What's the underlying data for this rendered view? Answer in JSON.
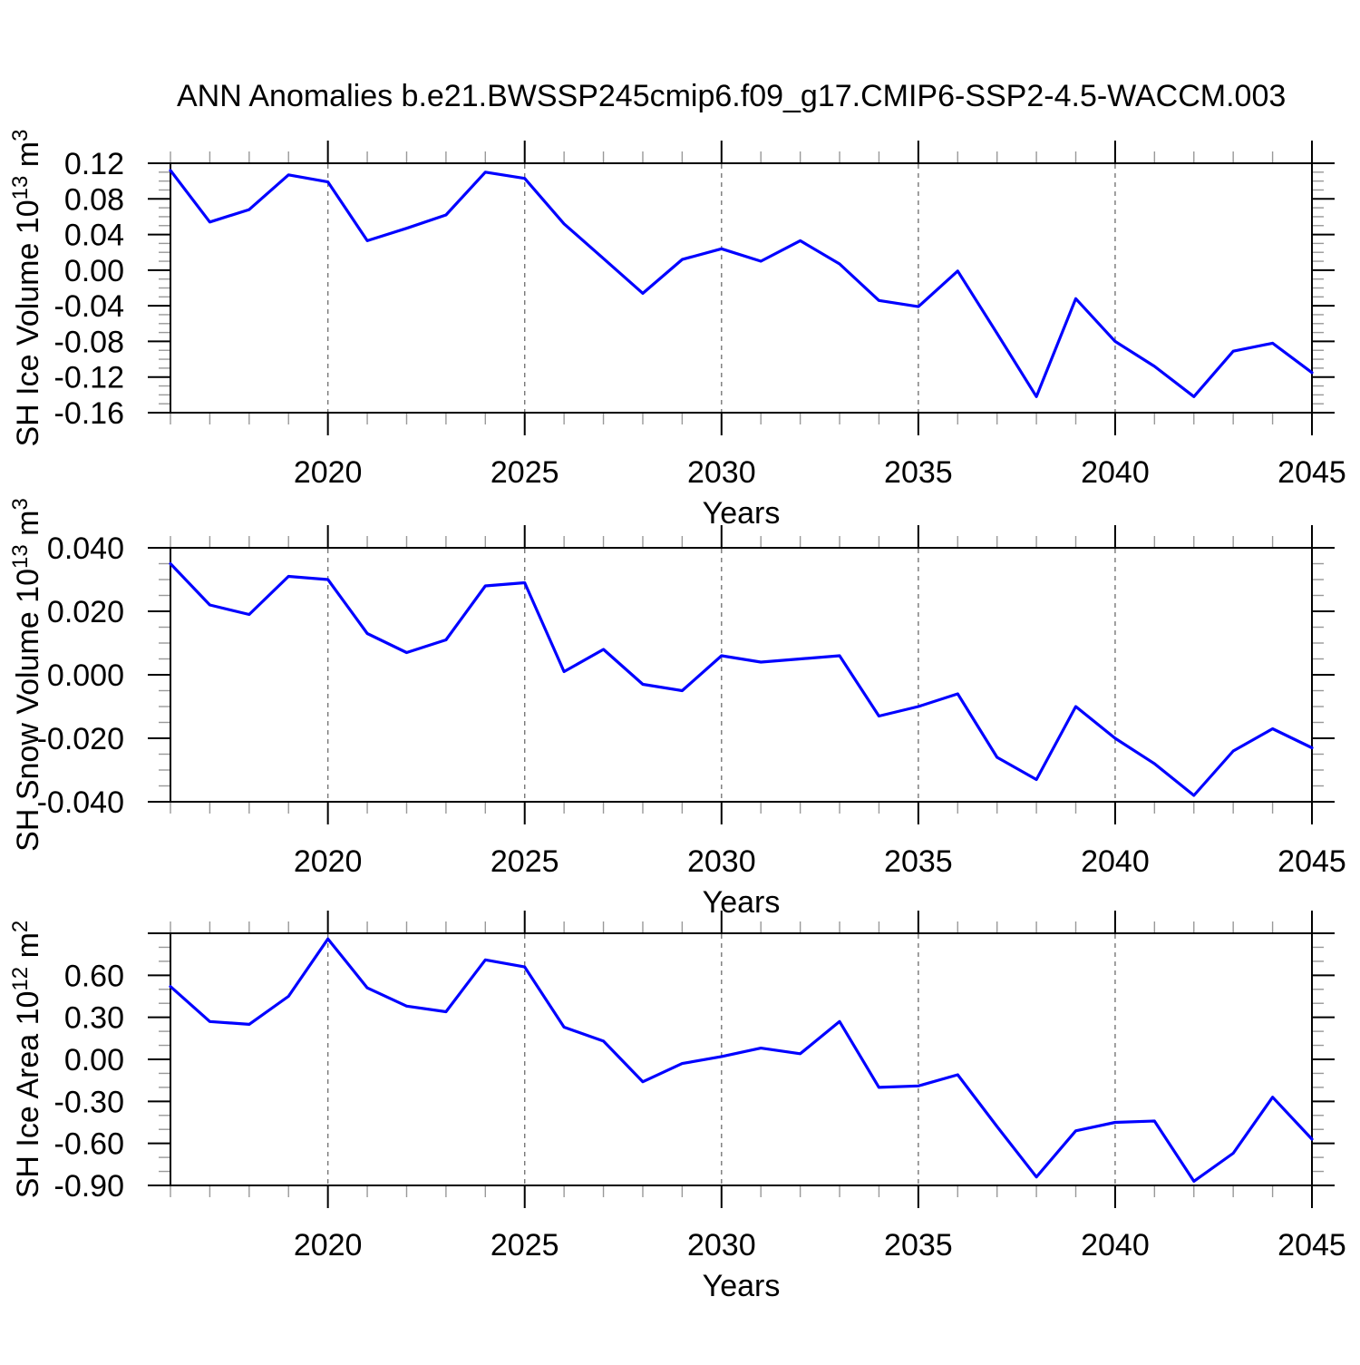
{
  "title": "ANN Anomalies b.e21.BWSSP245cmip6.f09_g17.CMIP6-SSP2-4.5-WACCM.003",
  "colors": {
    "line": "#0000ff",
    "frame": "#000000",
    "major_tick": "#000000",
    "minor_tick": "#999999",
    "dashed_line": "#777777",
    "text": "#000000",
    "background": "#ffffff"
  },
  "x_axis": {
    "label": "Years",
    "start": 2016,
    "end": 2045,
    "major_tick_years": [
      2020,
      2025,
      2030,
      2035,
      2040,
      2045
    ],
    "major_tick_labels": [
      "2020",
      "2025",
      "2030",
      "2035",
      "2040",
      "2045"
    ],
    "minor_step": 1,
    "dashed_gridline_years": [
      2020,
      2025,
      2030,
      2035,
      2040
    ]
  },
  "chart_data": [
    {
      "type": "line",
      "name": "sh-ice-volume",
      "title": "",
      "xlabel": "Years",
      "ylabel": "SH Ice Volume 10^13 m^3",
      "ylabel_parts": [
        {
          "t": "SH Ice Volume 10"
        },
        {
          "t": "13",
          "sup": true
        },
        {
          "t": " m"
        },
        {
          "t": "3",
          "sup": true
        }
      ],
      "ylim": [
        -0.16,
        0.12
      ],
      "ytick_major_values": [
        0.12,
        0.08,
        0.04,
        0.0,
        -0.04,
        -0.08,
        -0.12,
        -0.16
      ],
      "ytick_major_labels": [
        "0.12",
        "0.08",
        "0.04",
        "0.00",
        "-0.04",
        "-0.08",
        "-0.12",
        "-0.16"
      ],
      "ytick_minor_step": 0.01,
      "x": [
        2016,
        2017,
        2018,
        2019,
        2020,
        2021,
        2022,
        2023,
        2024,
        2025,
        2026,
        2027,
        2028,
        2029,
        2030,
        2031,
        2032,
        2033,
        2034,
        2035,
        2036,
        2037,
        2038,
        2039,
        2040,
        2041,
        2042,
        2043,
        2044,
        2045
      ],
      "values": [
        0.112,
        0.054,
        0.068,
        0.107,
        0.099,
        0.033,
        0.047,
        0.062,
        0.11,
        0.103,
        0.052,
        0.013,
        -0.026,
        0.012,
        0.024,
        0.01,
        0.033,
        0.007,
        -0.034,
        -0.041,
        -0.001,
        -0.071,
        -0.142,
        -0.032,
        -0.08,
        -0.108,
        -0.142,
        -0.091,
        -0.082,
        -0.115
      ]
    },
    {
      "type": "line",
      "name": "sh-snow-volume",
      "title": "",
      "xlabel": "Years",
      "ylabel": "SH Snow Volume 10^13 m^3",
      "ylabel_parts": [
        {
          "t": "SH Snow Volume 10"
        },
        {
          "t": "13",
          "sup": true
        },
        {
          "t": " m"
        },
        {
          "t": "3",
          "sup": true
        }
      ],
      "ylim": [
        -0.04,
        0.04
      ],
      "ytick_major_values": [
        0.04,
        0.02,
        0.0,
        -0.02,
        -0.04
      ],
      "ytick_major_labels": [
        "0.040",
        "0.020",
        "0.000",
        "-0.020",
        "-0.040"
      ],
      "ytick_minor_step": 0.005,
      "x": [
        2016,
        2017,
        2018,
        2019,
        2020,
        2021,
        2022,
        2023,
        2024,
        2025,
        2026,
        2027,
        2028,
        2029,
        2030,
        2031,
        2032,
        2033,
        2034,
        2035,
        2036,
        2037,
        2038,
        2039,
        2040,
        2041,
        2042,
        2043,
        2044,
        2045
      ],
      "values": [
        0.035,
        0.022,
        0.019,
        0.031,
        0.03,
        0.013,
        0.007,
        0.011,
        0.028,
        0.029,
        0.001,
        0.008,
        -0.003,
        -0.005,
        0.006,
        0.004,
        0.005,
        0.006,
        -0.013,
        -0.01,
        -0.006,
        -0.026,
        -0.033,
        -0.01,
        -0.02,
        -0.028,
        -0.038,
        -0.024,
        -0.017,
        -0.023
      ]
    },
    {
      "type": "line",
      "name": "sh-ice-area",
      "title": "",
      "xlabel": "Years",
      "ylabel": "SH Ice Area 10^12 m^2",
      "ylabel_parts": [
        {
          "t": "SH Ice Area 10"
        },
        {
          "t": "12",
          "sup": true
        },
        {
          "t": " m"
        },
        {
          "t": "2",
          "sup": true
        }
      ],
      "ylim": [
        -0.9,
        0.9
      ],
      "ytick_major_values": [
        0.9,
        0.6,
        0.3,
        0.0,
        -0.3,
        -0.6,
        -0.9
      ],
      "ytick_major_labels": [
        "",
        "0.60",
        "0.30",
        "0.00",
        "-0.30",
        "-0.60",
        "-0.90"
      ],
      "ytick_minor_step": 0.1,
      "x": [
        2016,
        2017,
        2018,
        2019,
        2020,
        2021,
        2022,
        2023,
        2024,
        2025,
        2026,
        2027,
        2028,
        2029,
        2030,
        2031,
        2032,
        2033,
        2034,
        2035,
        2036,
        2037,
        2038,
        2039,
        2040,
        2041,
        2042,
        2043,
        2044,
        2045
      ],
      "values": [
        0.52,
        0.27,
        0.25,
        0.45,
        0.86,
        0.51,
        0.38,
        0.34,
        0.71,
        0.66,
        0.23,
        0.13,
        -0.16,
        -0.03,
        0.02,
        0.08,
        0.04,
        0.27,
        -0.2,
        -0.19,
        -0.11,
        -0.48,
        -0.84,
        -0.51,
        -0.45,
        -0.44,
        -0.87,
        -0.67,
        -0.27,
        -0.57
      ]
    }
  ]
}
